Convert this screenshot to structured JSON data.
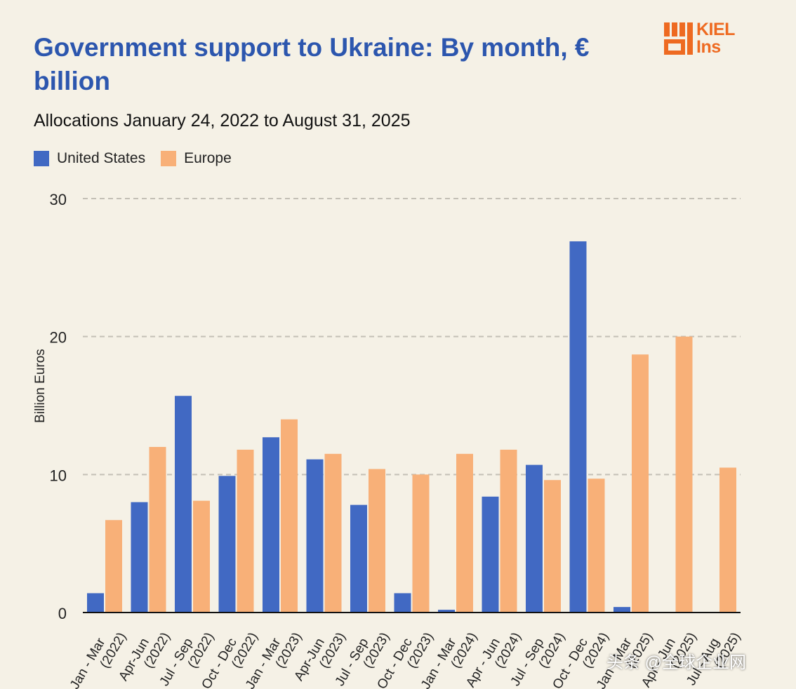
{
  "header": {
    "title": "Government support to Ukraine: By month, € billion",
    "subtitle": "Allocations January 24, 2022 to August 31, 2025"
  },
  "logo": {
    "text_line1": "KIEL",
    "text_line2": "Ins",
    "color": "#ee6a21"
  },
  "watermark": {
    "text": "头条 @全球企业网"
  },
  "colors": {
    "us": "#4169c3",
    "europe": "#f8b078",
    "grid": "#c4c0b6",
    "axis": "#111111"
  },
  "chart_data": {
    "type": "bar",
    "title": "Government support to Ukraine: By month, € billion",
    "subtitle": "Allocations January 24, 2022 to August 31, 2025",
    "ylabel": "Billion Euros",
    "xlabel": "",
    "ylim": [
      0,
      30
    ],
    "yticks": [
      0,
      10,
      20,
      30
    ],
    "grid": true,
    "legend_position": "top-left",
    "categories": [
      [
        "Jan - Mar",
        "(2022)"
      ],
      [
        "Apr-Jun",
        "(2022)"
      ],
      [
        "Jul - Sep",
        "(2022)"
      ],
      [
        "Oct - Dec",
        "(2022)"
      ],
      [
        "Jan - Mar",
        "(2023)"
      ],
      [
        "Apr-Jun",
        "(2023)"
      ],
      [
        "Jul - Sep",
        "(2023)"
      ],
      [
        "Oct - Dec",
        "(2023)"
      ],
      [
        "Jan - Mar",
        "(2024)"
      ],
      [
        "Apr - Jun",
        "(2024)"
      ],
      [
        "Jul - Sep",
        "(2024)"
      ],
      [
        "Oct - Dec",
        "(2024)"
      ],
      [
        "Jan - Mar",
        "(2025)"
      ],
      [
        "Apr - Jun",
        "(2025)"
      ],
      [
        "Jul - Aug",
        "(2025)"
      ]
    ],
    "series": [
      {
        "name": "United States",
        "color": "#4169c3",
        "values": [
          1.4,
          8.0,
          15.7,
          9.9,
          12.7,
          11.1,
          7.8,
          1.4,
          0.2,
          8.4,
          10.7,
          26.9,
          0.4,
          0,
          0
        ]
      },
      {
        "name": "Europe",
        "color": "#f8b078",
        "values": [
          6.7,
          12.0,
          8.1,
          11.8,
          14.0,
          11.5,
          10.4,
          10.0,
          11.5,
          11.8,
          9.6,
          9.7,
          18.7,
          20.0,
          10.5
        ]
      }
    ]
  }
}
